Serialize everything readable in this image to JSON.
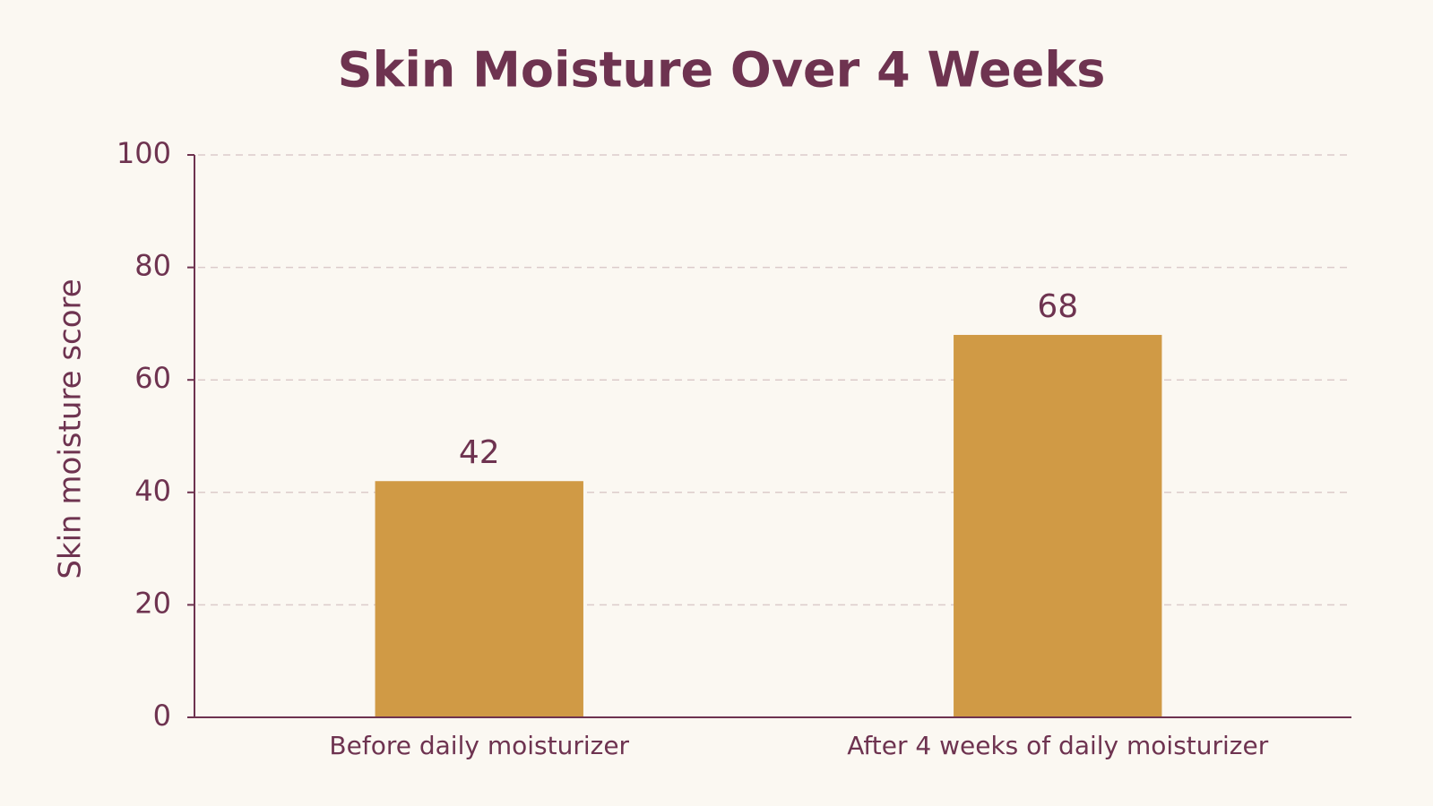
{
  "chart_data": {
    "type": "bar",
    "title": "Skin Moisture Over 4 Weeks",
    "y_label": "Skin moisture score",
    "categories": [
      "Before daily moisturizer",
      "After 4 weeks of daily moisturizer"
    ],
    "values": [
      42,
      68
    ],
    "color": "#d09a45",
    "ylim": [
      0,
      100
    ],
    "yticks": [
      0,
      20,
      40,
      60,
      80,
      100
    ],
    "grid": true
  }
}
